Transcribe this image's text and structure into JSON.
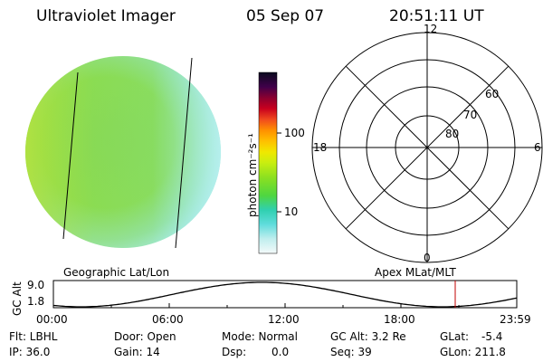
{
  "header": {
    "title": "Ultraviolet Imager",
    "date": "05 Sep 07",
    "time": "20:51:11 UT"
  },
  "colorbar": {
    "unit_label": "photon cm⁻²s⁻¹",
    "ticks": [
      "100",
      "10"
    ],
    "colors": [
      "#0a0a1e",
      "#1a0030",
      "#4b0040",
      "#8b0020",
      "#c8001e",
      "#f05a1e",
      "#ffa000",
      "#ffd000",
      "#e6f000",
      "#a8f000",
      "#60e020",
      "#30d0a0",
      "#40d8d8",
      "#80e8e8",
      "#c8f0f0",
      "#f0f8f8"
    ]
  },
  "image": {
    "color_main": "#7fd84a",
    "color_edge": "#9ae8e8",
    "color_left": "#a8e040"
  },
  "polar": {
    "labels": {
      "top": "12",
      "left": "18",
      "right": "6",
      "bottom": "0",
      "lat60": "60",
      "lat70": "70",
      "lat80": "80"
    }
  },
  "captions": {
    "left": "Geographic Lat/Lon",
    "right": "Apex MLat/MLT"
  },
  "altitude_plot": {
    "ylabel": "GC Alt",
    "ymax": "9.0",
    "ymin": "1.8",
    "xticks": [
      "00:00",
      "06:00",
      "12:00",
      "18:00",
      "23:59"
    ],
    "marker_color": "#c00000"
  },
  "info": {
    "flt": "Flt: LBHL",
    "ip": "IP: 36.0",
    "door": "Door: Open",
    "gain": "Gain: 14",
    "mode": "Mode: Normal",
    "dsp_label": "Dsp:",
    "dsp_value": "0.0",
    "gcalt": "GC Alt: 3.2 Re",
    "seq": "Seq: 39",
    "glat_label": "GLat:",
    "glat_value": "-5.4",
    "glon": "GLon: 211.8"
  }
}
